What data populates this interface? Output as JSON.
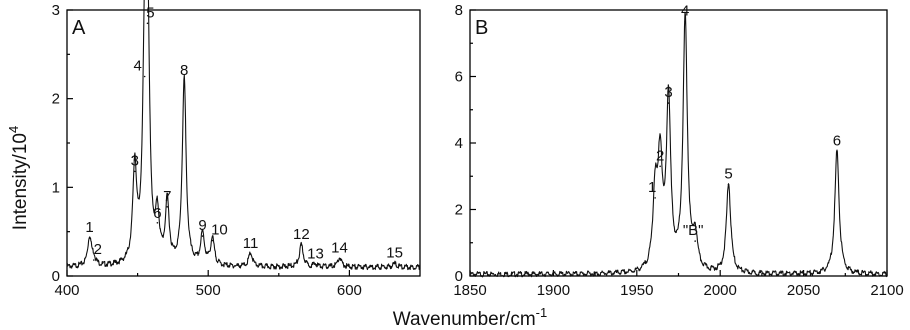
{
  "axis_titles": {
    "y": "Intensity/10",
    "y_sup": "4",
    "x": "Wavenumber/cm",
    "x_sup": "-1"
  },
  "chart_data": [
    {
      "panel": "A",
      "type": "line",
      "xlim": [
        400,
        650
      ],
      "ylim": [
        0,
        3
      ],
      "xticks": [
        400,
        500,
        600
      ],
      "yticks": [
        0,
        1,
        2,
        3
      ],
      "baseline": 0.1,
      "peaks": [
        {
          "label": "1",
          "x": 416,
          "y": 0.43
        },
        {
          "label": "2",
          "x": 419,
          "y": 0.18
        },
        {
          "label": "3",
          "x": 448,
          "y": 1.18
        },
        {
          "label": "4",
          "x": 455,
          "y": 2.25
        },
        {
          "label": "5",
          "x": 457,
          "y": 2.85
        },
        {
          "label": "6",
          "x": 464,
          "y": 0.6
        },
        {
          "label": "7",
          "x": 471,
          "y": 0.78
        },
        {
          "label": "8",
          "x": 483,
          "y": 2.2
        },
        {
          "label": "9",
          "x": 496,
          "y": 0.45
        },
        {
          "label": "10",
          "x": 503,
          "y": 0.4
        },
        {
          "label": "11",
          "x": 530,
          "y": 0.25
        },
        {
          "label": "12",
          "x": 566,
          "y": 0.35
        },
        {
          "label": "13",
          "x": 576,
          "y": 0.13
        },
        {
          "label": "14",
          "x": 593,
          "y": 0.2
        },
        {
          "label": "15",
          "x": 632,
          "y": 0.14
        }
      ]
    },
    {
      "panel": "B",
      "type": "line",
      "xlim": [
        1850,
        2100
      ],
      "ylim": [
        0,
        8
      ],
      "xticks": [
        1850,
        1900,
        1950,
        2000,
        2050,
        2100
      ],
      "yticks": [
        0,
        2,
        4,
        6,
        8
      ],
      "baseline": 0.05,
      "peaks": [
        {
          "label": "1",
          "x": 1961,
          "y": 2.35
        },
        {
          "label": "2",
          "x": 1964,
          "y": 3.3
        },
        {
          "label": "3",
          "x": 1969,
          "y": 5.2
        },
        {
          "label": "4",
          "x": 1979,
          "y": 7.65
        },
        {
          "label": "\"B\"",
          "x": 1985,
          "y": 1.05
        },
        {
          "label": "5",
          "x": 2005,
          "y": 2.75
        },
        {
          "label": "6",
          "x": 2070,
          "y": 3.75
        }
      ]
    }
  ]
}
